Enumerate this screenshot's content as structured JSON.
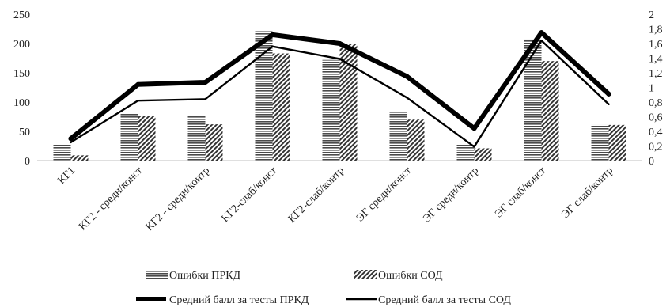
{
  "chart_data": {
    "type": "bar",
    "categories": [
      "КГ1",
      "КГ2 - средн/конст",
      "КГ2 - средн/контр",
      "КГ2-слаб/конст",
      "КГ2-слаб/контр",
      "ЭГ средн/конст",
      "ЭГ средн/контр",
      "ЭГ слаб/конст",
      "ЭГ слаб/контр"
    ],
    "y_left": {
      "min": 0,
      "max": 250,
      "ticks": [
        "0",
        "50",
        "100",
        "150",
        "200",
        "250"
      ]
    },
    "y_right": {
      "min": 0,
      "max": 2,
      "ticks": [
        "0",
        "0,2",
        "0,4",
        "0,6",
        "0,8",
        "1",
        "1,2",
        "1,4",
        "1,6",
        "1,8",
        "2"
      ]
    },
    "grid": false,
    "legend_position": "bottom",
    "bar_series": [
      {
        "name": "Ошибки ПРКД",
        "axis": "left",
        "pattern": "horizontal",
        "values": [
          28,
          80,
          76,
          221,
          172,
          85,
          27,
          207,
          61
        ]
      },
      {
        "name": "Ошибки СОД",
        "axis": "left",
        "pattern": "diagonal",
        "values": [
          9,
          77,
          62,
          183,
          200,
          70,
          21,
          170,
          61
        ]
      }
    ],
    "line_series": [
      {
        "name": "Средний балл за тесты ПРКД",
        "axis": "right",
        "style": "thick",
        "values": [
          0.3,
          1.04,
          1.07,
          1.72,
          1.6,
          1.15,
          0.44,
          1.75,
          0.91
        ]
      },
      {
        "name": "Средний балл за тесты СОД",
        "axis": "right",
        "style": "thin",
        "values": [
          0.25,
          0.82,
          0.84,
          1.56,
          1.39,
          0.86,
          0.19,
          1.64,
          0.77
        ]
      }
    ]
  }
}
